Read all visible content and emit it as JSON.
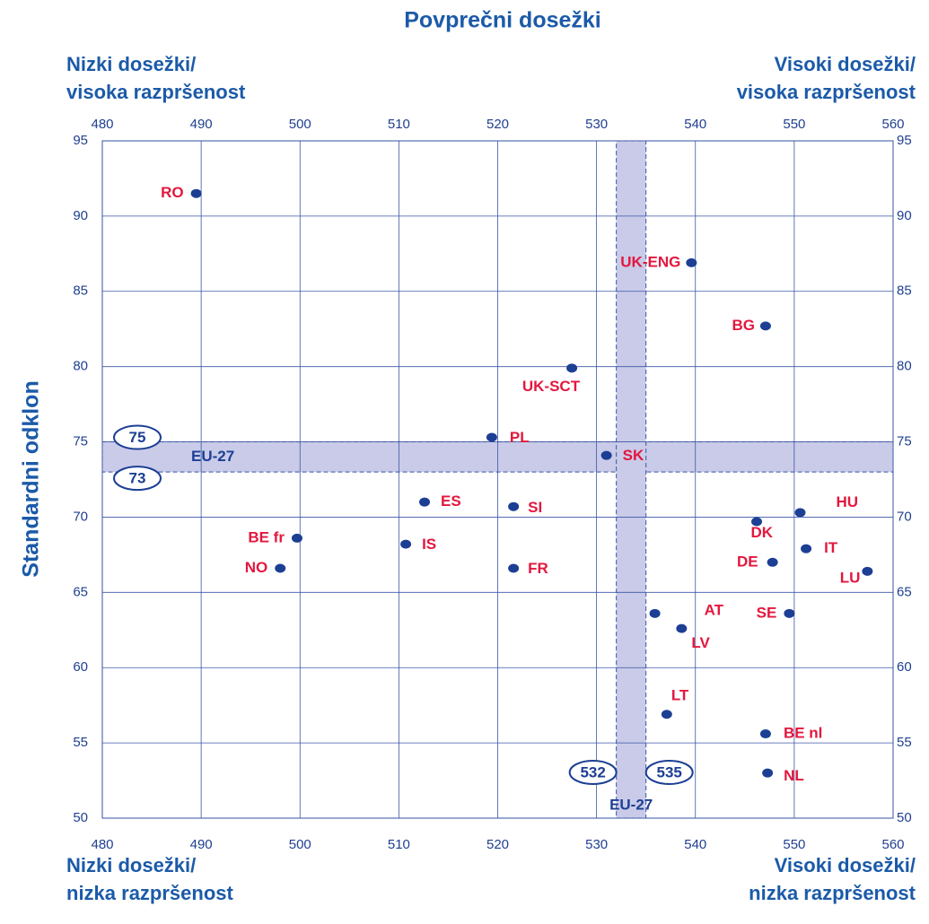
{
  "chart_data": {
    "type": "scatter",
    "title": "Povprečni dosežki",
    "y_label": "Standardni odklon",
    "corner_labels": {
      "top_left": [
        "Nizki dosežki/",
        "visoka razpršenost"
      ],
      "top_right": [
        "Visoki dosežki/",
        "visoka razpršenost"
      ],
      "bottom_left": [
        "Nizki dosežki/",
        "nizka razpršenost"
      ],
      "bottom_right": [
        "Visoki dosežki/",
        "nizka razpršenost"
      ]
    },
    "labels": [
      "RO",
      "UK-ENG",
      "BG",
      "UK-SCT",
      "PL",
      "SK",
      "ES",
      "SI",
      "BE fr",
      "IS",
      "NO",
      "FR",
      "DK",
      "HU",
      "IT",
      "DE",
      "LU",
      "AT",
      "SE",
      "LV",
      "LT",
      "BE nl",
      "NL"
    ],
    "x": [
      489.5,
      539.6,
      547.1,
      527.5,
      519.4,
      531.0,
      512.6,
      521.6,
      499.7,
      510.7,
      498.0,
      521.6,
      546.2,
      550.6,
      551.2,
      547.8,
      557.4,
      535.9,
      549.5,
      538.6,
      537.1,
      547.1,
      547.3
    ],
    "values": [
      91.5,
      86.9,
      82.7,
      79.9,
      75.3,
      74.1,
      71.0,
      70.7,
      68.6,
      68.2,
      66.6,
      66.6,
      69.7,
      70.3,
      67.9,
      67.0,
      66.4,
      63.6,
      63.6,
      62.6,
      56.9,
      55.6,
      53.0
    ],
    "point_color": "#1c3f94",
    "label_color": "#e3173e",
    "eu27": {
      "label": "EU-27",
      "ylow": 73,
      "yhigh": 75,
      "xlow": 532,
      "xhigh": 535,
      "color": "#c9cbe8"
    },
    "xlim": [
      480,
      560
    ],
    "ylim": [
      50,
      95
    ],
    "xticks": [
      480,
      490,
      500,
      510,
      520,
      530,
      540,
      550,
      560
    ],
    "yticks": [
      50,
      55,
      60,
      65,
      70,
      75,
      80,
      85,
      90,
      95
    ],
    "grid": true
  }
}
